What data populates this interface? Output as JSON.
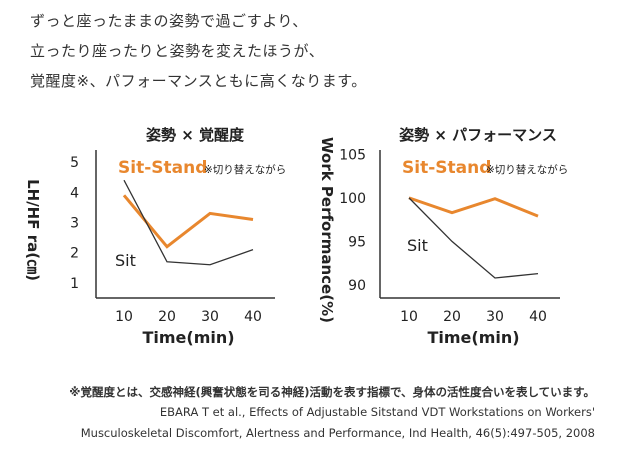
{
  "intro": {
    "lines": [
      "ずっと座ったままの姿勢で過ごすより、",
      "立ったり座ったりと姿勢を変えたほうが、",
      "覚醒度※、パフォーマンスともに高くなります。"
    ]
  },
  "chart_data": [
    {
      "type": "line",
      "title": "姿勢 × 覚醒度",
      "xlabel": "Time(min)",
      "ylabel": "LH/HF ra(㎝)",
      "x": [
        10,
        20,
        30,
        40
      ],
      "xticks": [
        "10",
        "20",
        "30",
        "40"
      ],
      "yticks": [
        "1",
        "2",
        "3",
        "4",
        "5"
      ],
      "ylim": [
        0.5,
        5.4
      ],
      "series": [
        {
          "name": "Sit-Stand",
          "annotation": "※切り替えながら",
          "color": "#e8872e",
          "values": [
            3.9,
            2.2,
            3.3,
            3.1
          ]
        },
        {
          "name": "Sit",
          "color": "#333333",
          "values": [
            4.4,
            1.7,
            1.6,
            2.1
          ]
        }
      ]
    },
    {
      "type": "line",
      "title": "姿勢 × パフォーマンス",
      "xlabel": "Time(min)",
      "ylabel": "Work Performance(%)",
      "x": [
        10,
        20,
        30,
        40
      ],
      "xticks": [
        "10",
        "20",
        "30",
        "40"
      ],
      "yticks": [
        "90",
        "95",
        "100",
        "105"
      ],
      "ylim": [
        88.5,
        105.5
      ],
      "series": [
        {
          "name": "Sit-Stand",
          "annotation": "※切り替えながら",
          "color": "#e8872e",
          "values": [
            100,
            98.3,
            99.9,
            97.9
          ]
        },
        {
          "name": "Sit",
          "color": "#333333",
          "values": [
            100,
            95,
            90.8,
            91.3
          ]
        }
      ]
    }
  ],
  "footer": {
    "note": "※覚醒度とは、交感神経(興奮状態を司る神経)活動を表す指標で、身体の活性度合いを表しています。",
    "ref_line1": "EBARA T et al., Effects of Adjustable Sitstand VDT Workstations on Workers'",
    "ref_line2": "Musculoskeletal Discomfort, Alertness and Performance, Ind Health, 46(5):497-505, 2008"
  }
}
